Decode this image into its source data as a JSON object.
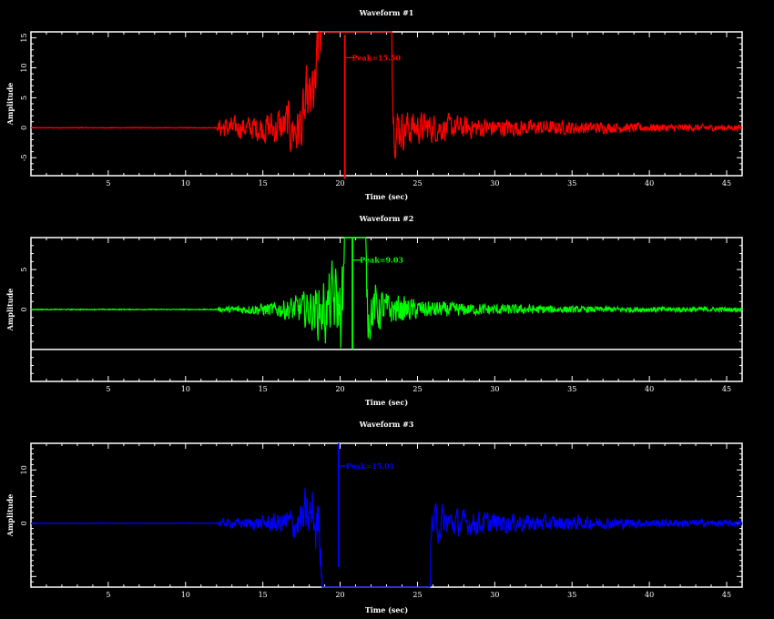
{
  "chart_data": [
    {
      "type": "line",
      "title": "Waveform #1",
      "xlabel": "Time (sec)",
      "ylabel": "Amplitude",
      "color": "#ff0000",
      "xlim": [
        0,
        46
      ],
      "ylim": [
        -8,
        16
      ],
      "xticks": [
        5,
        10,
        15,
        20,
        25,
        30,
        35,
        40,
        45
      ],
      "yticks": [
        -5,
        0,
        5,
        10,
        15
      ],
      "ytick_labels": [
        "-5",
        "0",
        "5",
        "10",
        "15"
      ],
      "onset_time": 12,
      "baseline": 0,
      "peak_time": 20.3,
      "peak_value": 15.5,
      "peak_label": "Peak=15.50",
      "envelope": [
        [
          12,
          0
        ],
        [
          12.2,
          1.6
        ],
        [
          14,
          1.8
        ],
        [
          15,
          2.2
        ],
        [
          16,
          3.0
        ],
        [
          17,
          3.8
        ],
        [
          18,
          5.0
        ],
        [
          19,
          6.5
        ],
        [
          20,
          7.2
        ],
        [
          20.3,
          15.5
        ],
        [
          21,
          6.0
        ],
        [
          22,
          4.8
        ],
        [
          23,
          3.6
        ],
        [
          25,
          2.4
        ],
        [
          28,
          1.8
        ],
        [
          32,
          1.3
        ],
        [
          36,
          1.0
        ],
        [
          40,
          0.7
        ],
        [
          46,
          0.5
        ]
      ]
    },
    {
      "type": "line",
      "title": "Waveform #2",
      "xlabel": "Time (sec)",
      "ylabel": "Amplitude",
      "color": "#00ff00",
      "xlim": [
        0,
        46
      ],
      "ylim": [
        -9,
        9
      ],
      "xticks": [
        5,
        10,
        15,
        20,
        25,
        30,
        35,
        40,
        45
      ],
      "yticks": [
        -5,
        0,
        5
      ],
      "ytick_labels": [
        "0",
        "5"
      ],
      "onset_time": 12,
      "baseline": 0,
      "peak_time": 20.8,
      "peak_value": 9.03,
      "peak_label": "Peak=9.03",
      "envelope": [
        [
          12,
          0
        ],
        [
          12.2,
          0.3
        ],
        [
          14,
          0.6
        ],
        [
          16,
          1.0
        ],
        [
          17,
          1.6
        ],
        [
          18,
          2.2
        ],
        [
          19,
          3.5
        ],
        [
          20,
          4.5
        ],
        [
          20.8,
          9.0
        ],
        [
          21.5,
          3.5
        ],
        [
          23,
          2.0
        ],
        [
          25,
          1.2
        ],
        [
          28,
          0.8
        ],
        [
          32,
          0.6
        ],
        [
          36,
          0.4
        ],
        [
          40,
          0.35
        ],
        [
          46,
          0.3
        ]
      ]
    },
    {
      "type": "line",
      "title": "Waveform #3",
      "xlabel": "Time (sec)",
      "ylabel": "Amplitude",
      "color": "#0000ff",
      "xlim": [
        0,
        46
      ],
      "ylim": [
        -12,
        15
      ],
      "xticks": [
        5,
        10,
        15,
        20,
        25,
        30,
        35,
        40,
        45
      ],
      "yticks": [
        -10,
        -5,
        0,
        5,
        10
      ],
      "ytick_labels": [
        "0",
        "10"
      ],
      "onset_time": 12,
      "baseline": 0,
      "peak_time": 19.9,
      "peak_value": 15.01,
      "peak_label": "Peak=15.01",
      "envelope": [
        [
          12,
          0
        ],
        [
          12.2,
          0.8
        ],
        [
          14,
          1.0
        ],
        [
          16,
          1.8
        ],
        [
          17,
          2.8
        ],
        [
          18,
          4.5
        ],
        [
          19,
          6.5
        ],
        [
          19.9,
          15.0
        ],
        [
          20.5,
          8.5
        ],
        [
          21.5,
          7.5
        ],
        [
          23,
          5.0
        ],
        [
          25,
          3.5
        ],
        [
          28,
          2.2
        ],
        [
          32,
          1.6
        ],
        [
          36,
          1.2
        ],
        [
          40,
          0.8
        ],
        [
          46,
          0.6
        ]
      ]
    }
  ]
}
